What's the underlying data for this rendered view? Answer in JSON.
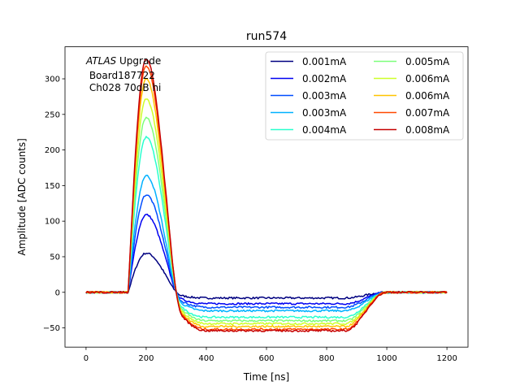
{
  "chart_data": {
    "type": "line",
    "title": "run574",
    "xlabel": "Time [ns]",
    "ylabel": "Amplitude [ADC counts]",
    "xlim": [
      -70,
      1270
    ],
    "ylim": [
      -77,
      345
    ],
    "xticks": [
      0,
      200,
      400,
      600,
      800,
      1000,
      1200
    ],
    "yticks": [
      -50,
      0,
      50,
      100,
      150,
      200,
      250,
      300
    ],
    "grid": false,
    "legend_position": "top-right",
    "legend_columns": 2,
    "annotation": {
      "line1_italic": "ATLAS",
      "line1_rest": " Upgrade",
      "line2": " Board187722",
      "line3": " Ch028 70dB hi"
    },
    "pulse_shape": {
      "rise_start_ns": 140,
      "peak_ns": 200,
      "zero_cross_ns": 320,
      "undershoot_ns": [
        400,
        860
      ],
      "recover_ns": 1000
    },
    "series": [
      {
        "name": "0.001mA",
        "color": "#000080",
        "peak": 55,
        "undershoot": -8
      },
      {
        "name": "0.002mA",
        "color": "#0000f1",
        "peak": 109,
        "undershoot": -16
      },
      {
        "name": "0.003mA",
        "color": "#004dff",
        "peak": 137,
        "undershoot": -21
      },
      {
        "name": "0.003mA",
        "color": "#00b1ff",
        "peak": 164,
        "undershoot": -26
      },
      {
        "name": "0.004mA",
        "color": "#29ffce",
        "peak": 218,
        "undershoot": -35
      },
      {
        "name": "0.005mA",
        "color": "#7dff7a",
        "peak": 246,
        "undershoot": -40
      },
      {
        "name": "0.006mA",
        "color": "#ceff29",
        "peak": 272,
        "undershoot": -44
      },
      {
        "name": "0.006mA",
        "color": "#ffc400",
        "peak": 300,
        "undershoot": -48
      },
      {
        "name": "0.007mA",
        "color": "#ff4800",
        "peak": 318,
        "undershoot": -52
      },
      {
        "name": "0.008mA",
        "color": "#c60000",
        "peak": 328,
        "undershoot": -54
      }
    ]
  }
}
